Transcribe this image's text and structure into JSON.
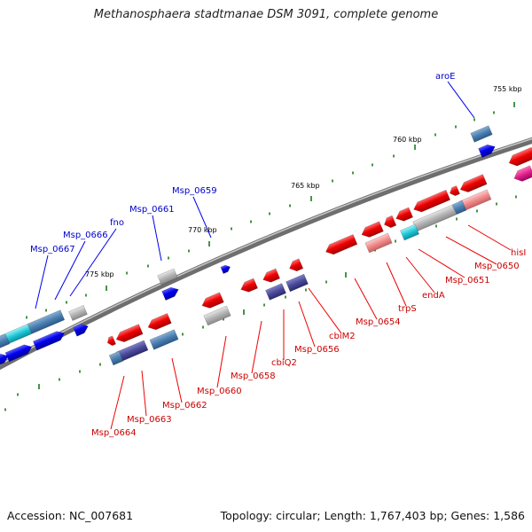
{
  "title": "Methanosphaera stadtmanae DSM 3091, complete genome",
  "footer": {
    "accession": "Accession: NC_007681",
    "summary": "Topology: circular; Length: 1,767,403 bp; Genes: 1,586"
  },
  "colors": {
    "forward_gene": "#0000ee",
    "reverse_gene": "#ee0000",
    "forward_label": "#0000cc",
    "reverse_label": "#cc0000",
    "backbone": "#7a7a7a",
    "tick": "#1a7a1a",
    "pseudo": "#b4b4b4",
    "steelblue": "#4a7eb0",
    "slate": "#4a4a9a",
    "cyan": "#20c8d8",
    "pink": "#f08a8a",
    "magenta": "#e0208a"
  },
  "scale_labels": [
    "755 kbp",
    "760 kbp",
    "765 kbp",
    "770 kbp",
    "775 kbp"
  ],
  "forward_labels": [
    "aroE",
    "Msp_0659",
    "Msp_0661",
    "fno",
    "Msp_0666",
    "Msp_0667"
  ],
  "reverse_labels": [
    "hisI",
    "Msp_0650",
    "Msp_0651",
    "endA",
    "trpS",
    "Msp_0654",
    "cbiM2",
    "Msp_0656",
    "cbiQ2",
    "Msp_0658",
    "Msp_0660",
    "Msp_0662",
    "Msp_0663",
    "Msp_0664"
  ]
}
